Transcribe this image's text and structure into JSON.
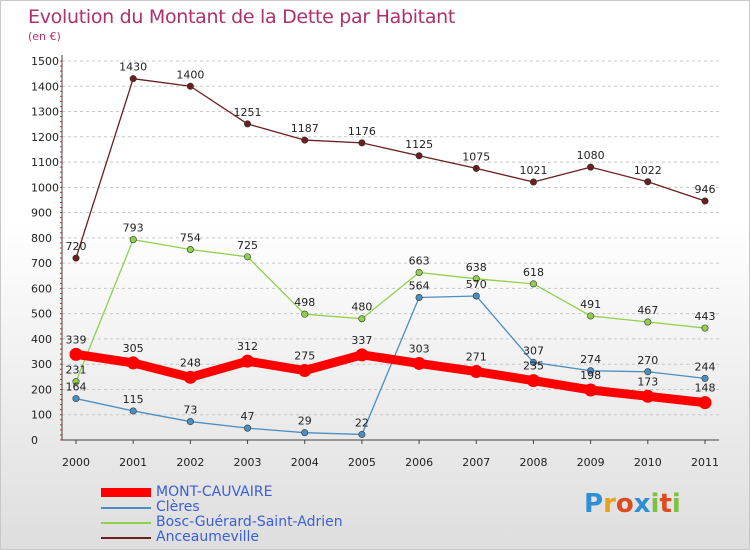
{
  "header": {
    "title": "Evolution du Montant de la Dette par Habitant",
    "subtitle": "(en €)"
  },
  "brand": {
    "logo_text": "Proxiti"
  },
  "colors": {
    "title": "#b0306a",
    "MONT-CAUVAIRE": "#ff0000",
    "Clères": "#4a8ec2",
    "Bosc-Guérard-Saint-Adrien": "#8fd14f",
    "Anceaumeville": "#6b1e1e"
  },
  "chart_data": {
    "type": "line",
    "x": [
      "2000",
      "2001",
      "2002",
      "2003",
      "2004",
      "2005",
      "2006",
      "2007",
      "2008",
      "2009",
      "2010",
      "2011"
    ],
    "ylim": [
      0,
      1500
    ],
    "yticks": [
      0,
      100,
      200,
      300,
      400,
      500,
      600,
      700,
      800,
      900,
      1000,
      1100,
      1200,
      1300,
      1400,
      1500
    ],
    "grid": "horizontal dashed",
    "legend_position": "bottom-left",
    "series": [
      {
        "name": "MONT-CAUVAIRE",
        "values": [
          339,
          305,
          248,
          312,
          275,
          337,
          303,
          271,
          235,
          198,
          173,
          148
        ],
        "color": "#ff0000"
      },
      {
        "name": "Clères",
        "values": [
          164,
          115,
          73,
          47,
          29,
          22,
          564,
          570,
          307,
          274,
          270,
          244
        ],
        "color": "#4a8ec2"
      },
      {
        "name": "Bosc-Guérard-Saint-Adrien",
        "values": [
          231,
          793,
          754,
          725,
          498,
          480,
          663,
          638,
          618,
          491,
          467,
          443
        ],
        "color": "#8fd14f"
      },
      {
        "name": "Anceaumeville",
        "values": [
          720,
          1430,
          1400,
          1251,
          1187,
          1176,
          1125,
          1075,
          1021,
          1080,
          1022,
          946
        ],
        "color": "#6b1e1e"
      }
    ]
  }
}
